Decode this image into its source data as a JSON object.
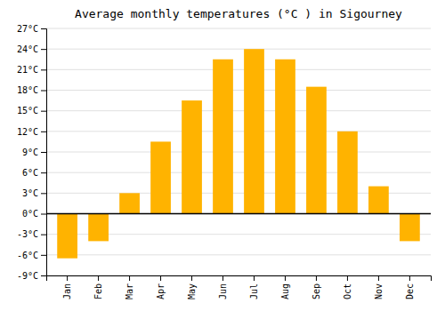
{
  "chart_data": {
    "type": "bar",
    "title": "Average monthly temperatures (°C ) in Sigourney",
    "categories": [
      "Jan",
      "Feb",
      "Mar",
      "Apr",
      "May",
      "Jun",
      "Jul",
      "Aug",
      "Sep",
      "Oct",
      "Nov",
      "Dec"
    ],
    "values": [
      -6.5,
      -4.0,
      3.0,
      10.5,
      16.5,
      22.5,
      24.0,
      22.5,
      18.5,
      12.0,
      4.0,
      -4.0
    ],
    "color": "#FFB300",
    "ylim": [
      -9,
      27
    ],
    "yticks": [
      {
        "value": -9,
        "label": "-9°C"
      },
      {
        "value": -6,
        "label": "-6°C"
      },
      {
        "value": -3,
        "label": "-3°C"
      },
      {
        "value": 0,
        "label": "0°C"
      },
      {
        "value": 3,
        "label": "3°C"
      },
      {
        "value": 6,
        "label": "6°C"
      },
      {
        "value": 9,
        "label": "9°C"
      },
      {
        "value": 12,
        "label": "12°C"
      },
      {
        "value": 15,
        "label": "15°C"
      },
      {
        "value": 18,
        "label": "18°C"
      },
      {
        "value": 21,
        "label": "21°C"
      },
      {
        "value": 24,
        "label": "24°C"
      },
      {
        "value": 27,
        "label": "27°C"
      }
    ],
    "grid": true
  }
}
